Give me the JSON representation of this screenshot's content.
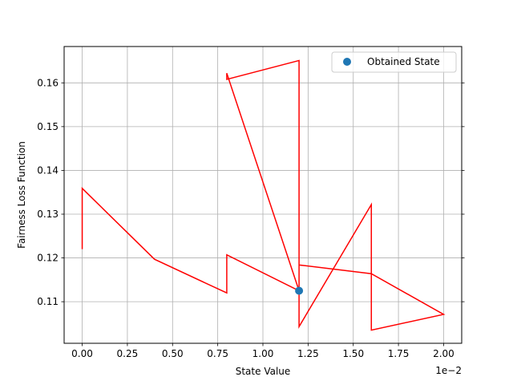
{
  "chart_data": {
    "type": "line",
    "xlabel": "State Value",
    "ylabel": "Fairness Loss Function",
    "x_offset_text": "1e−2",
    "xlim": [
      -0.1,
      2.1
    ],
    "ylim": [
      0.1005,
      0.1683
    ],
    "xticks": [
      0.0,
      0.25,
      0.5,
      0.75,
      1.0,
      1.25,
      1.5,
      1.75,
      2.0
    ],
    "xtick_labels": [
      "0.00",
      "0.25",
      "0.50",
      "0.75",
      "1.00",
      "1.25",
      "1.50",
      "1.75",
      "2.00"
    ],
    "yticks": [
      0.11,
      0.12,
      0.13,
      0.14,
      0.15,
      0.16
    ],
    "ytick_labels": [
      "0.11",
      "0.12",
      "0.13",
      "0.14",
      "0.15",
      "0.16"
    ],
    "grid": true,
    "legend_position": "top-right",
    "series": [
      {
        "kind": "line",
        "color": "#ff0000",
        "points": [
          [
            0.0,
            0.122
          ],
          [
            0.0,
            0.1359
          ],
          [
            0.4,
            0.1197
          ],
          [
            0.8,
            0.112
          ],
          [
            0.8,
            0.1207
          ],
          [
            1.2,
            0.1125
          ],
          [
            1.2,
            0.1184
          ],
          [
            1.6,
            0.1164
          ],
          [
            2.0,
            0.1071
          ],
          [
            1.6,
            0.1035
          ],
          [
            1.6,
            0.1322
          ],
          [
            1.2,
            0.1043
          ],
          [
            1.2,
            0.1651
          ],
          [
            0.8,
            0.1608
          ],
          [
            0.8,
            0.1622
          ],
          [
            1.2,
            0.1125
          ]
        ]
      },
      {
        "kind": "scatter",
        "name": "Obtained State",
        "color": "#1f77b4",
        "points": [
          [
            1.2,
            0.1125
          ]
        ]
      }
    ]
  }
}
